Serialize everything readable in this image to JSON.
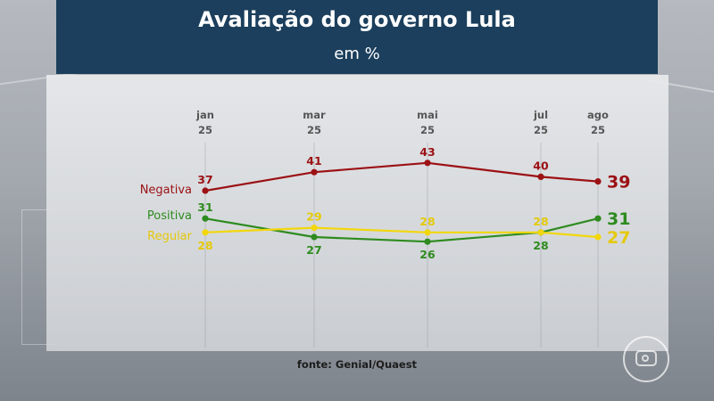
{
  "header": {
    "title": "Avaliação do governo Lula",
    "subtitle": "em %"
  },
  "source": "fonte: Genial/Quaest",
  "chart_data": {
    "type": "line",
    "title": "Avaliação do governo Lula",
    "subtitle": "em %",
    "categories": [
      {
        "month": "jan",
        "year": "25"
      },
      {
        "month": "mar",
        "year": "25"
      },
      {
        "month": "mai",
        "year": "25"
      },
      {
        "month": "jul",
        "year": "25"
      },
      {
        "month": "ago",
        "year": "25"
      }
    ],
    "series": [
      {
        "key": "negativa",
        "name": "Negativa",
        "color": "#9b1114",
        "label_color": "#9b1114",
        "values": [
          37,
          41,
          43,
          40,
          39
        ]
      },
      {
        "key": "positiva",
        "name": "Positiva",
        "color": "#2e8b1f",
        "label_color": "#2e8b1f",
        "values": [
          31,
          27,
          26,
          28,
          31
        ]
      },
      {
        "key": "regular",
        "name": "Regular",
        "color": "#f2d70c",
        "label_color": "#e4c90b",
        "values": [
          28,
          29,
          28,
          28,
          27
        ]
      }
    ],
    "grid": true,
    "legend": "left, inline with first point"
  }
}
